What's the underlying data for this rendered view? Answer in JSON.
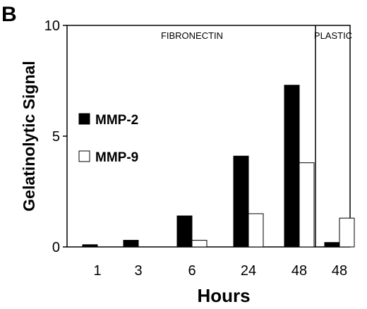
{
  "panel_label": "B",
  "chart_data": {
    "type": "bar",
    "ylabel": "Gelatinolytic Signal",
    "xlabel": "Hours",
    "ylim": [
      0,
      10
    ],
    "yticks": [
      0,
      5,
      10
    ],
    "ytick_labels": [
      "0",
      "5",
      "10"
    ],
    "categories": [
      "1",
      "3",
      "6",
      "24",
      "48",
      "48"
    ],
    "groups": [
      {
        "label": "FIBRONECTIN",
        "category_count": 5
      },
      {
        "label": "PLASTIC",
        "category_count": 1
      }
    ],
    "series": [
      {
        "name": "MMP-2",
        "color": "#000000",
        "values": [
          0.1,
          0.3,
          1.4,
          4.1,
          7.3,
          0.2
        ]
      },
      {
        "name": "MMP-9",
        "color": "#ffffff",
        "values": [
          0.0,
          0.0,
          0.3,
          1.5,
          3.8,
          1.3
        ]
      }
    ],
    "legend_position": "left-middle inside plot",
    "grid": false
  }
}
